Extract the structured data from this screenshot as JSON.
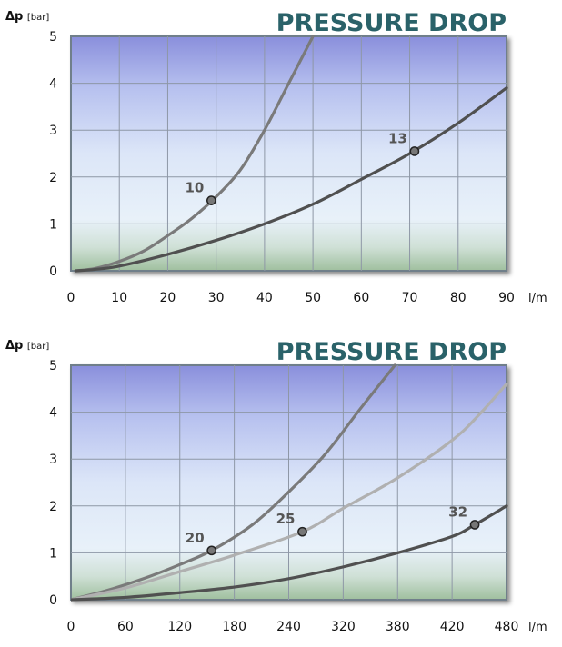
{
  "chart_data": [
    {
      "type": "line",
      "title": "PRESSURE DROP",
      "ylabel_main": "Δp",
      "ylabel_unit": "[bar]",
      "xlabel": "l/m",
      "xlim": [
        0,
        90
      ],
      "ylim": [
        0,
        5
      ],
      "xticks": [
        0,
        10,
        20,
        30,
        40,
        50,
        60,
        70,
        80,
        90
      ],
      "yticks": [
        0,
        1,
        2,
        3,
        4,
        5
      ],
      "grid": true,
      "series": [
        {
          "name": "10",
          "color": "#7a7a7a",
          "points": [
            [
              1,
              0
            ],
            [
              5,
              0.05
            ],
            [
              10,
              0.2
            ],
            [
              15,
              0.42
            ],
            [
              20,
              0.75
            ],
            [
              25,
              1.12
            ],
            [
              30,
              1.58
            ],
            [
              35,
              2.15
            ],
            [
              40,
              3.0
            ],
            [
              45,
              4.0
            ],
            [
              50,
              5.0
            ]
          ],
          "marker": {
            "x": 29,
            "y": 1.5
          }
        },
        {
          "name": "13",
          "color": "#505050",
          "points": [
            [
              1,
              0
            ],
            [
              5,
              0.03
            ],
            [
              10,
              0.1
            ],
            [
              20,
              0.35
            ],
            [
              30,
              0.65
            ],
            [
              40,
              1.0
            ],
            [
              50,
              1.42
            ],
            [
              60,
              1.95
            ],
            [
              70,
              2.5
            ],
            [
              80,
              3.15
            ],
            [
              90,
              3.9
            ]
          ],
          "marker": {
            "x": 71,
            "y": 2.55
          }
        }
      ]
    },
    {
      "type": "line",
      "title": "PRESSURE DROP",
      "ylabel_main": "Δp",
      "ylabel_unit": "[bar]",
      "xlabel": "l/m",
      "xlim": [
        0,
        480
      ],
      "ylim": [
        0,
        5
      ],
      "xticks": [
        0,
        60,
        120,
        180,
        240,
        320,
        380,
        420,
        480
      ],
      "yticks": [
        0,
        1,
        2,
        3,
        4,
        5
      ],
      "grid": true,
      "series": [
        {
          "name": "20",
          "color": "#7a7a7a",
          "points": [
            [
              0,
              0
            ],
            [
              40,
              0.2
            ],
            [
              80,
              0.45
            ],
            [
              120,
              0.75
            ],
            [
              155,
              1.05
            ],
            [
              200,
              1.6
            ],
            [
              240,
              2.3
            ],
            [
              280,
              3.1
            ],
            [
              320,
              4.1
            ],
            [
              357,
              5.0
            ]
          ],
          "marker": {
            "x": 155,
            "y": 1.05
          }
        },
        {
          "name": "25",
          "color": "#b0b0b0",
          "points": [
            [
              0,
              0
            ],
            [
              60,
              0.25
            ],
            [
              120,
              0.6
            ],
            [
              180,
              0.95
            ],
            [
              255,
              1.45
            ],
            [
              300,
              1.95
            ],
            [
              360,
              2.6
            ],
            [
              420,
              3.4
            ],
            [
              450,
              3.95
            ],
            [
              480,
              4.6
            ]
          ],
          "marker": {
            "x": 255,
            "y": 1.45
          }
        },
        {
          "name": "32",
          "color": "#505050",
          "points": [
            [
              0,
              0
            ],
            [
              60,
              0.05
            ],
            [
              120,
              0.15
            ],
            [
              180,
              0.27
            ],
            [
              240,
              0.45
            ],
            [
              300,
              0.7
            ],
            [
              360,
              1.0
            ],
            [
              420,
              1.35
            ],
            [
              445,
              1.6
            ],
            [
              480,
              2.0
            ]
          ],
          "marker": {
            "x": 445,
            "y": 1.6
          }
        }
      ]
    }
  ]
}
